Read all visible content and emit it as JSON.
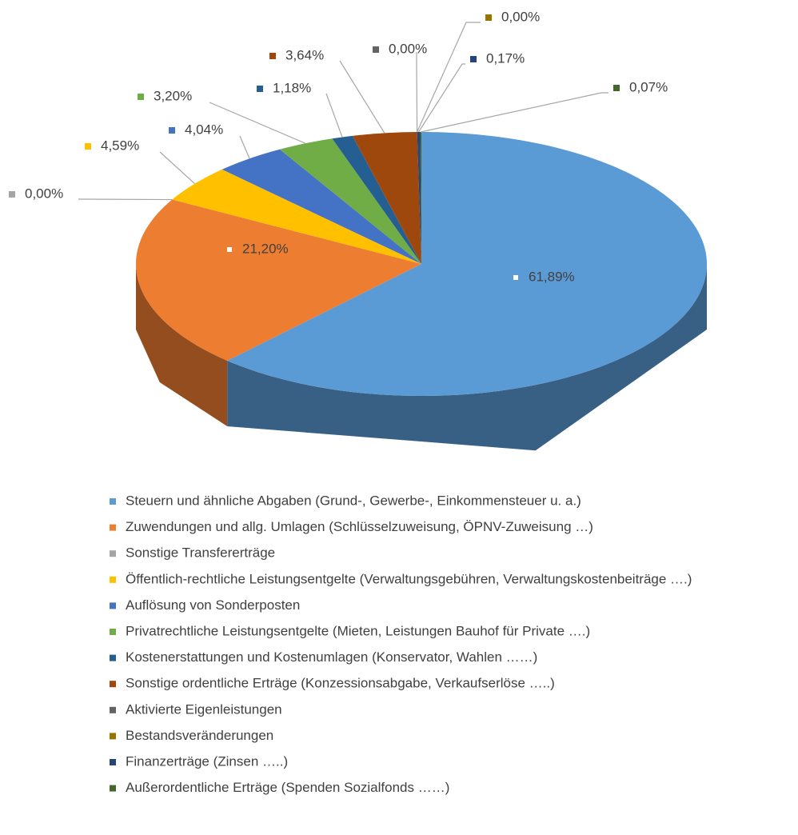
{
  "chart_data": {
    "type": "pie3d",
    "categories": [
      "Steuern und ähnliche Abgaben (Grund-, Gewerbe-, Einkommensteuer u. a.)",
      "Zuwendungen und allg. Umlagen (Schlüsselzuweisung, ÖPNV-Zuweisung …)",
      "Sonstige Transfererträge",
      "Öffentlich-rechtliche Leistungsentgelte (Verwaltungsgebühren, Verwaltungskostenbeiträge ….)",
      "Auflösung von Sonderposten",
      "Privatrechtliche Leistungsentgelte (Mieten, Leistungen Bauhof für Private  ….)",
      "Kostenerstattungen und Kostenumlagen (Konservator, Wahlen ……)",
      "Sonstige ordentliche Erträge (Konzessionsabgabe, Verkaufserlöse …..)",
      "Aktivierte Eigenleistungen",
      "Bestandsveränderungen",
      "Finanzerträge (Zinsen …..)",
      "Außerordentliche Erträge (Spenden Sozialfonds ……)"
    ],
    "values": [
      61.89,
      21.2,
      0,
      4.59,
      4.04,
      3.2,
      1.18,
      3.64,
      0,
      0,
      0.17,
      0.07
    ],
    "value_labels": [
      "61,89%",
      "21,20%",
      "0,00%",
      "4,59%",
      "4,04%",
      "3,20%",
      "1,18%",
      "3,64%",
      "0,00%",
      "0,00%",
      "0,17%",
      "0,07%"
    ],
    "colors": [
      "#5b9bd5",
      "#ed7d31",
      "#a5a5a5",
      "#ffc000",
      "#4472c4",
      "#70ad47",
      "#255e91",
      "#9e480e",
      "#636363",
      "#997300",
      "#264478",
      "#43682b"
    ],
    "legend": "bottom"
  }
}
